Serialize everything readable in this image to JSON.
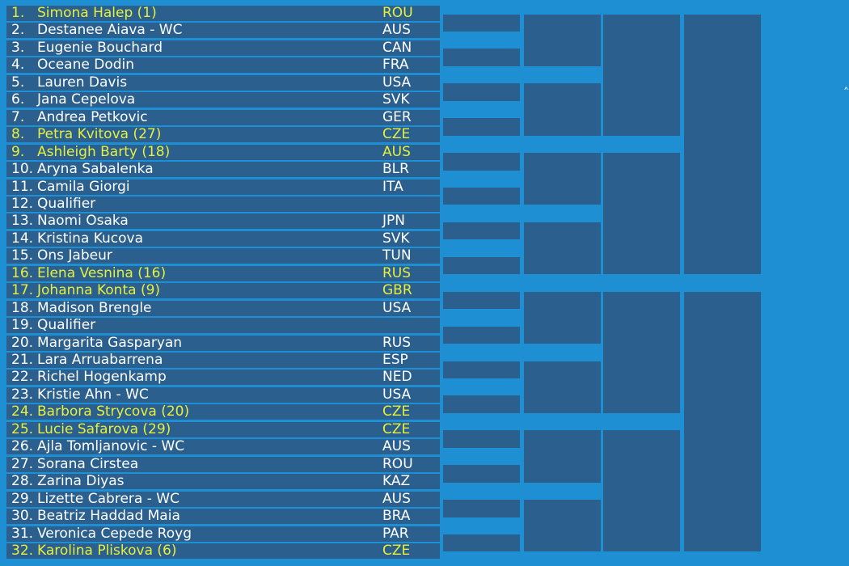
{
  "draw": {
    "players": [
      {
        "num": "1.",
        "name": "Simona Halep (1)",
        "country": "ROU",
        "seed": true
      },
      {
        "num": "2.",
        "name": "Destanee Aiava - WC",
        "country": "AUS",
        "seed": false
      },
      {
        "num": "3.",
        "name": "Eugenie Bouchard",
        "country": "CAN",
        "seed": false
      },
      {
        "num": "4.",
        "name": "Oceane Dodin",
        "country": "FRA",
        "seed": false
      },
      {
        "num": "5.",
        "name": "Lauren Davis",
        "country": "USA",
        "seed": false
      },
      {
        "num": "6.",
        "name": "Jana Cepelova",
        "country": "SVK",
        "seed": false
      },
      {
        "num": "7.",
        "name": "Andrea Petkovic",
        "country": "GER",
        "seed": false
      },
      {
        "num": "8.",
        "name": "Petra Kvitova (27)",
        "country": "CZE",
        "seed": true
      },
      {
        "num": "9.",
        "name": "Ashleigh Barty (18)",
        "country": "AUS",
        "seed": true
      },
      {
        "num": "10.",
        "name": "Aryna Sabalenka",
        "country": "BLR",
        "seed": false
      },
      {
        "num": "11.",
        "name": "Camila Giorgi",
        "country": "ITA",
        "seed": false
      },
      {
        "num": "12.",
        "name": "Qualifier",
        "country": "",
        "seed": false
      },
      {
        "num": "13.",
        "name": "Naomi Osaka",
        "country": "JPN",
        "seed": false
      },
      {
        "num": "14.",
        "name": "Kristina Kucova",
        "country": "SVK",
        "seed": false
      },
      {
        "num": "15.",
        "name": "Ons Jabeur",
        "country": "TUN",
        "seed": false
      },
      {
        "num": "16.",
        "name": "Elena Vesnina (16)",
        "country": "RUS",
        "seed": true
      },
      {
        "num": "17.",
        "name": "Johanna Konta (9)",
        "country": "GBR",
        "seed": true
      },
      {
        "num": "18.",
        "name": "Madison Brengle",
        "country": "USA",
        "seed": false
      },
      {
        "num": "19.",
        "name": "Qualifier",
        "country": "",
        "seed": false
      },
      {
        "num": "20.",
        "name": "Margarita Gasparyan",
        "country": "RUS",
        "seed": false
      },
      {
        "num": "21.",
        "name": "Lara Arruabarrena",
        "country": "ESP",
        "seed": false
      },
      {
        "num": "22.",
        "name": "Richel Hogenkamp",
        "country": "NED",
        "seed": false
      },
      {
        "num": "23.",
        "name": "Kristie Ahn - WC",
        "country": "USA",
        "seed": false
      },
      {
        "num": "24.",
        "name": "Barbora Strycova (20)",
        "country": "CZE",
        "seed": true
      },
      {
        "num": "25.",
        "name": "Lucie Safarova (29)",
        "country": "CZE",
        "seed": true
      },
      {
        "num": "26.",
        "name": "Ajla Tomljanovic - WC",
        "country": "AUS",
        "seed": false
      },
      {
        "num": "27.",
        "name": "Sorana Cirstea",
        "country": "ROU",
        "seed": false
      },
      {
        "num": "28.",
        "name": "Zarina Diyas",
        "country": "KAZ",
        "seed": false
      },
      {
        "num": "29.",
        "name": "Lizette Cabrera - WC",
        "country": "AUS",
        "seed": false
      },
      {
        "num": "30.",
        "name": "Beatriz Haddad Maia",
        "country": "BRA",
        "seed": false
      },
      {
        "num": "31.",
        "name": "Veronica Cepede Royg",
        "country": "PAR",
        "seed": false
      },
      {
        "num": "32.",
        "name": "Karolina Pliskova (6)",
        "country": "CZE",
        "seed": true
      }
    ]
  },
  "colors": {
    "background": "#1e8fd3",
    "row_fill": "#2a5f8e",
    "text": "#ffffff",
    "seed_text": "#e8ef3a"
  }
}
